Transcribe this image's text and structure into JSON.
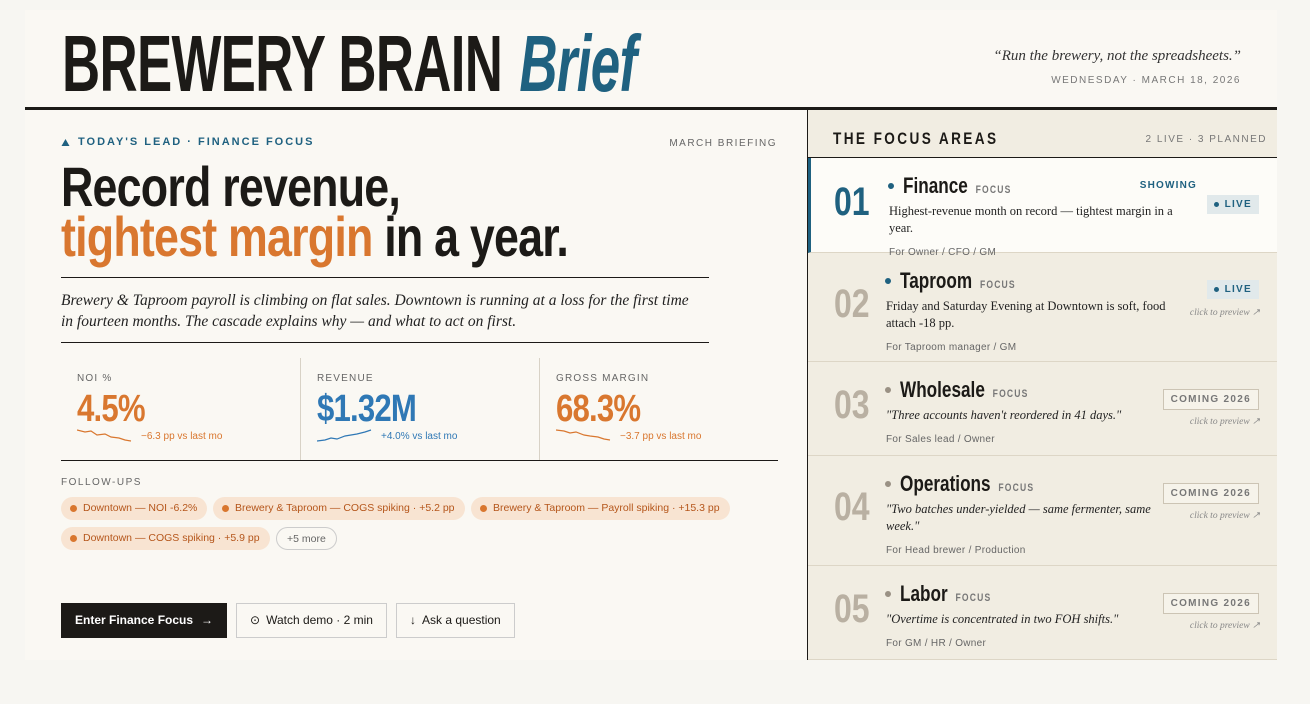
{
  "header": {
    "title": "BREWERY BRAIN",
    "title_accent": "Brief",
    "quote": "“Run the brewery, not the spreadsheets.”",
    "date": "WEDNESDAY · MARCH 18, 2026"
  },
  "lead": {
    "kicker": "TODAY'S LEAD · FINANCE FOCUS",
    "badge": "MARCH BRIEFING",
    "headline_1": "Record revenue,",
    "headline_accent": "tightest margin",
    "headline_2": " in a year.",
    "summary": "Brewery & Taproom payroll is climbing on flat sales. Downtown is running at a loss for the first time in fourteen months. The cascade explains why — and what to act on first.",
    "kpis": [
      {
        "label": "NOI %",
        "value": "4.5%",
        "delta": "−6.3 pp vs last mo",
        "color": "#d9772f"
      },
      {
        "label": "REVENUE",
        "value": "$1.32M",
        "delta": "+4.0% vs last mo",
        "color": "#2f78b5"
      },
      {
        "label": "GROSS MARGIN",
        "value": "68.3%",
        "delta": "−3.7 pp vs last mo",
        "color": "#d9772f"
      }
    ],
    "followups_label": "FOLLOW-UPS",
    "followups": [
      "Downtown — NOI -6.2%",
      "Brewery & Taproom — COGS spiking · +5.2 pp",
      "Brewery & Taproom — Payroll spiking · +15.3 pp",
      "Downtown — COGS spiking · +5.9 pp"
    ],
    "more": "+5 more",
    "actions": [
      "Enter Finance Focus",
      "Watch demo · 2 min",
      "Ask a question"
    ]
  },
  "focus": {
    "title": "THE FOCUS AREAS",
    "status": "2 LIVE · 3 PLANNED",
    "items": [
      {
        "number": "01",
        "name": "Finance",
        "tag": "FOCUS",
        "showing": "SHOWING",
        "desc": "Highest-revenue month on record — tightest margin in a year.",
        "audience": "For Owner / CFO / GM",
        "status": "LIVE"
      },
      {
        "number": "02",
        "name": "Taproom",
        "tag": "FOCUS",
        "desc": "Friday and Saturday Evening at Downtown is soft, food attach -18 pp.",
        "audience": "For Taproom manager / GM",
        "status": "LIVE",
        "hint": "click to preview ↗"
      },
      {
        "number": "03",
        "name": "Wholesale",
        "tag": "FOCUS",
        "desc": "\"Three accounts haven't reordered in 41 days.\"",
        "audience": "For Sales lead / Owner",
        "status": "COMING 2026",
        "hint": "click to preview ↗"
      },
      {
        "number": "04",
        "name": "Operations",
        "tag": "FOCUS",
        "desc": "\"Two batches under-yielded — same fermenter, same week.\"",
        "audience": "For Head brewer / Production",
        "status": "COMING 2026",
        "hint": "click to preview ↗"
      },
      {
        "number": "05",
        "name": "Labor",
        "tag": "FOCUS",
        "desc": "\"Overtime is concentrated in two FOH shifts.\"",
        "audience": "For GM / HR / Owner",
        "status": "COMING 2026",
        "hint": "click to preview ↗"
      }
    ]
  }
}
